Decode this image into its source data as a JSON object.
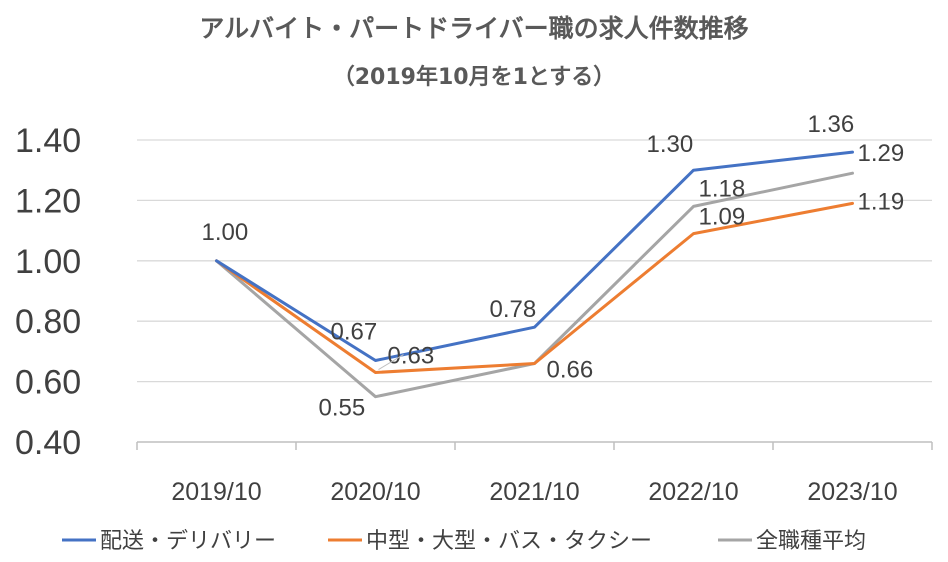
{
  "chart_data": {
    "type": "line",
    "title": "アルバイト・パートドライバー職の求人件数推移",
    "subtitle": "（2019年10月を1とする）",
    "categories": [
      "2019/10",
      "2020/10",
      "2021/10",
      "2022/10",
      "2023/10"
    ],
    "ylim": [
      0.4,
      1.4
    ],
    "yticks": [
      "0.40",
      "0.60",
      "0.80",
      "1.00",
      "1.20",
      "1.40"
    ],
    "grid": true,
    "legend_position": "bottom",
    "series": [
      {
        "name": "配送・デリバリー",
        "color": "#4472c4",
        "values": [
          1.0,
          0.67,
          0.78,
          1.3,
          1.36
        ]
      },
      {
        "name": "中型・大型・バス・タクシー",
        "color": "#ed7d31",
        "values": [
          1.0,
          0.63,
          0.66,
          1.09,
          1.19
        ]
      },
      {
        "name": "全職種平均",
        "color": "#a5a5a5",
        "values": [
          1.0,
          0.55,
          0.66,
          1.18,
          1.29
        ]
      }
    ],
    "data_labels": [
      {
        "text": "1.00",
        "series": 0,
        "point": 0
      },
      {
        "text": "0.67",
        "series": 0,
        "point": 1
      },
      {
        "text": "0.78",
        "series": 0,
        "point": 2
      },
      {
        "text": "1.30",
        "series": 0,
        "point": 3
      },
      {
        "text": "1.36",
        "series": 0,
        "point": 4
      },
      {
        "text": "0.63",
        "series": 1,
        "point": 1
      },
      {
        "text": "0.66",
        "series": 1,
        "point": 2
      },
      {
        "text": "1.09",
        "series": 1,
        "point": 3
      },
      {
        "text": "1.19",
        "series": 1,
        "point": 4
      },
      {
        "text": "0.55",
        "series": 2,
        "point": 1
      },
      {
        "text": "1.18",
        "series": 2,
        "point": 3
      },
      {
        "text": "1.29",
        "series": 2,
        "point": 4
      }
    ]
  }
}
